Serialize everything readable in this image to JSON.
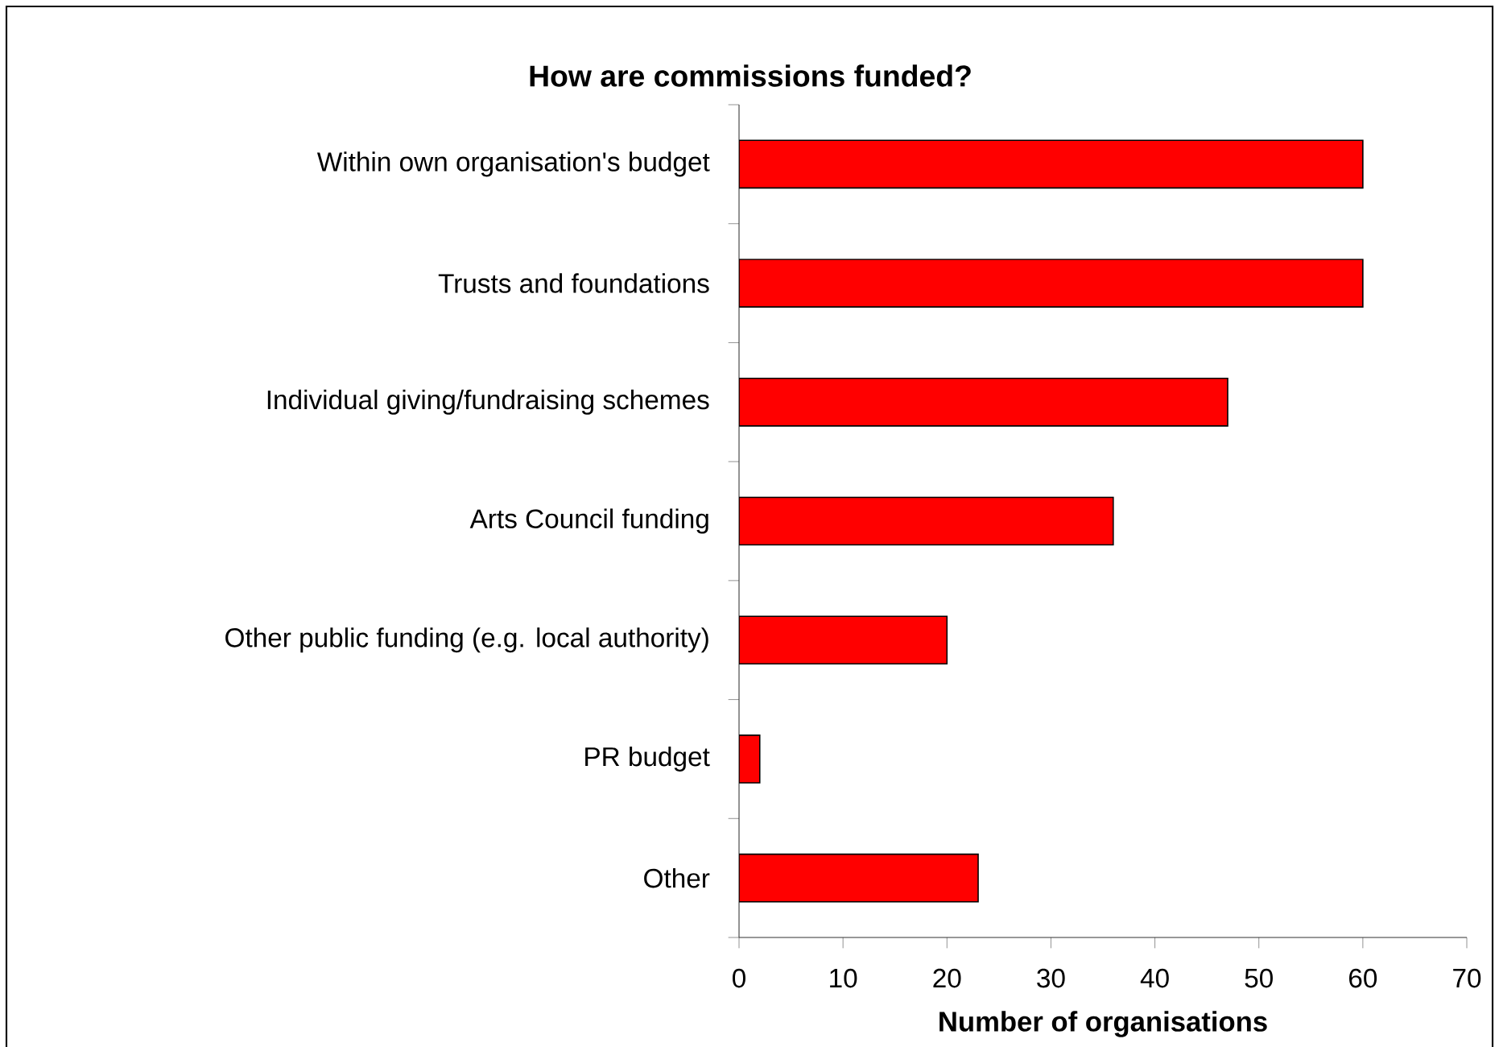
{
  "chart_data": {
    "type": "bar",
    "orientation": "horizontal",
    "title": "How are commissions funded?",
    "xlabel": "Number of organisations",
    "categories": [
      "Within own organisation's budget",
      "Trusts and foundations",
      "Individual giving/fundraising schemes",
      "Arts Council funding",
      "Other public funding (e.g. local authority)",
      "PR budget",
      "Other"
    ],
    "values": [
      60,
      60,
      47,
      36,
      20,
      2,
      23
    ],
    "color": "#ff0000",
    "xlim": [
      0,
      70
    ],
    "xticks": [
      0,
      10,
      20,
      30,
      40,
      50,
      60,
      70
    ],
    "grid": false
  }
}
